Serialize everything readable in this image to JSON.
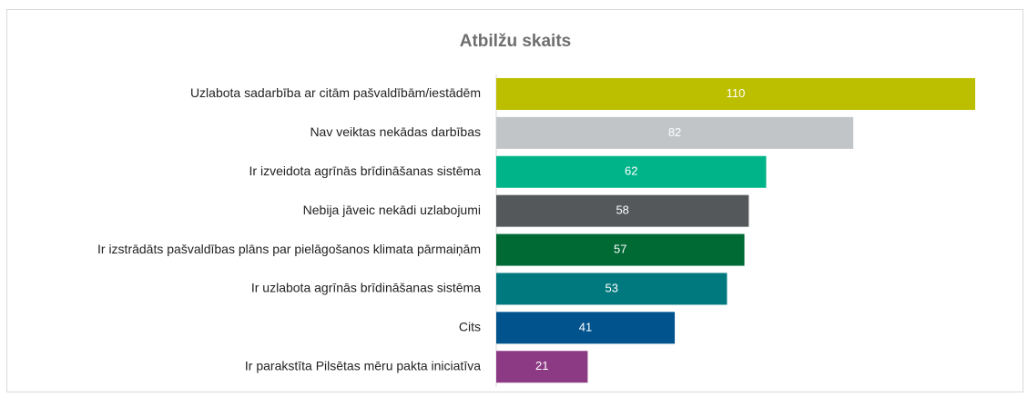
{
  "chart_data": {
    "type": "bar",
    "orientation": "horizontal",
    "title": "Atbilžu skaits",
    "categories": [
      "Uzlabota sadarbība ar citām pašvaldībām/iestādēm",
      "Nav veiktas nekādas darbības",
      "Ir izveidota agrīnās brīdināšanas sistēma",
      "Nebija jāveic nekādi uzlabojumi",
      "Ir izstrādāts pašvaldības plāns par pielāgošanos klimata pārmaiņām",
      "Ir uzlabota agrīnās brīdināšanas sistēma",
      "Cits",
      "Ir parakstīta Pilsētas mēru pakta iniciatīva"
    ],
    "values": [
      110,
      82,
      62,
      58,
      57,
      53,
      41,
      21
    ],
    "colors": [
      "#bcbe00",
      "#c1c5c8",
      "#00b48a",
      "#54585a",
      "#006a35",
      "#00797e",
      "#00538d",
      "#8d3a85"
    ]
  }
}
